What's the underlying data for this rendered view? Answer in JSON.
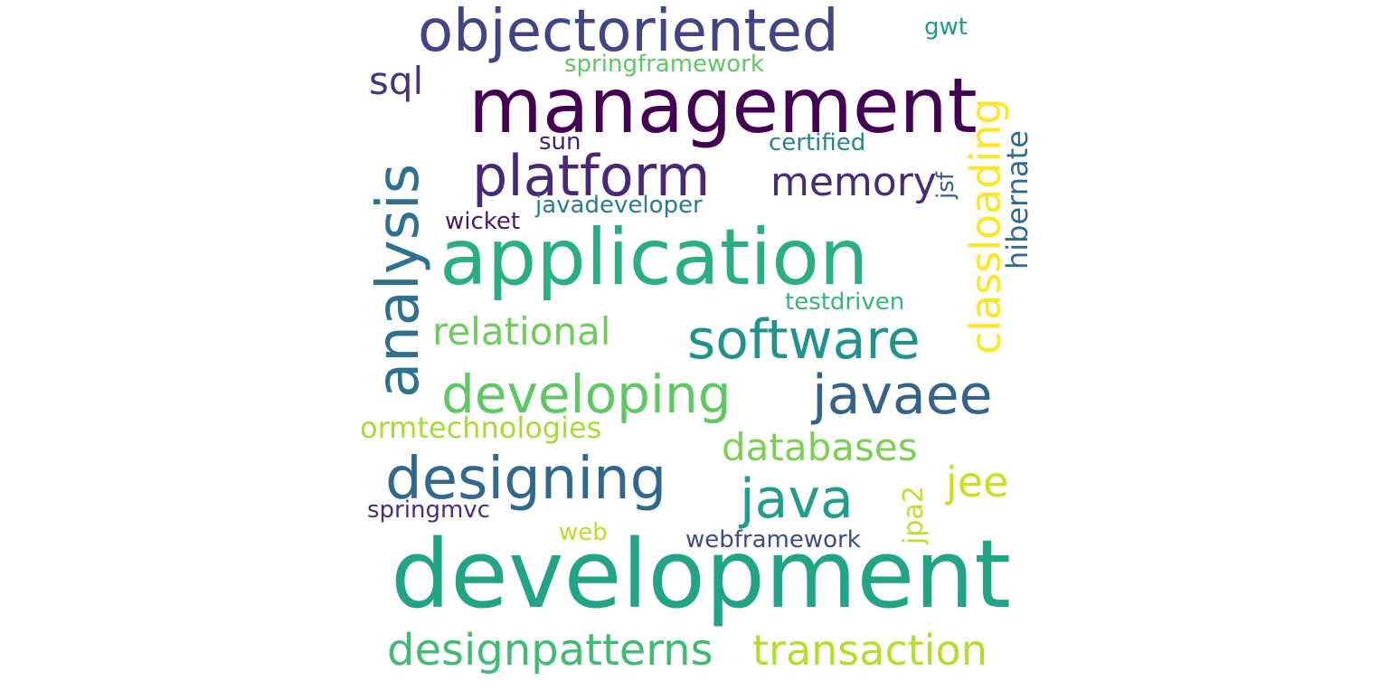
{
  "words": [
    {
      "text": "development",
      "color": "#21a585"
    },
    {
      "text": "management",
      "color": "#440154"
    },
    {
      "text": "application",
      "color": "#2ab07f"
    },
    {
      "text": "objectoriented",
      "color": "#414487"
    },
    {
      "text": "platform",
      "color": "#482878"
    },
    {
      "text": "analysis",
      "color": "#2c728e"
    },
    {
      "text": "software",
      "color": "#20938c"
    },
    {
      "text": "developing",
      "color": "#5ec962"
    },
    {
      "text": "javaee",
      "color": "#33638d"
    },
    {
      "text": "designing",
      "color": "#31688e"
    },
    {
      "text": "java",
      "color": "#1f9e89"
    },
    {
      "text": "designpatterns",
      "color": "#3fbc73"
    },
    {
      "text": "transaction",
      "color": "#b5de2b"
    },
    {
      "text": "classloading",
      "color": "#fde725"
    },
    {
      "text": "memory",
      "color": "#472c7a"
    },
    {
      "text": "relational",
      "color": "#6ccd5a"
    },
    {
      "text": "databases",
      "color": "#7ad151"
    },
    {
      "text": "jee",
      "color": "#c8e020"
    },
    {
      "text": "sql",
      "color": "#463480"
    },
    {
      "text": "hibernate",
      "color": "#306a8e"
    },
    {
      "text": "ormtechnologies",
      "color": "#a8db34"
    },
    {
      "text": "springframework",
      "color": "#5ec962"
    },
    {
      "text": "certified",
      "color": "#23888e"
    },
    {
      "text": "javadeveloper",
      "color": "#287c8e"
    },
    {
      "text": "testdriven",
      "color": "#35b779"
    },
    {
      "text": "jpa2",
      "color": "#c2df23"
    },
    {
      "text": "wicket",
      "color": "#481a6c"
    },
    {
      "text": "sun",
      "color": "#482071"
    },
    {
      "text": "springmvc",
      "color": "#46307e"
    },
    {
      "text": "webframework",
      "color": "#3e4a89"
    },
    {
      "text": "web",
      "color": "#b8de29"
    },
    {
      "text": "gwt",
      "color": "#1f9a8a"
    },
    {
      "text": "jsf",
      "color": "#35608d"
    }
  ]
}
